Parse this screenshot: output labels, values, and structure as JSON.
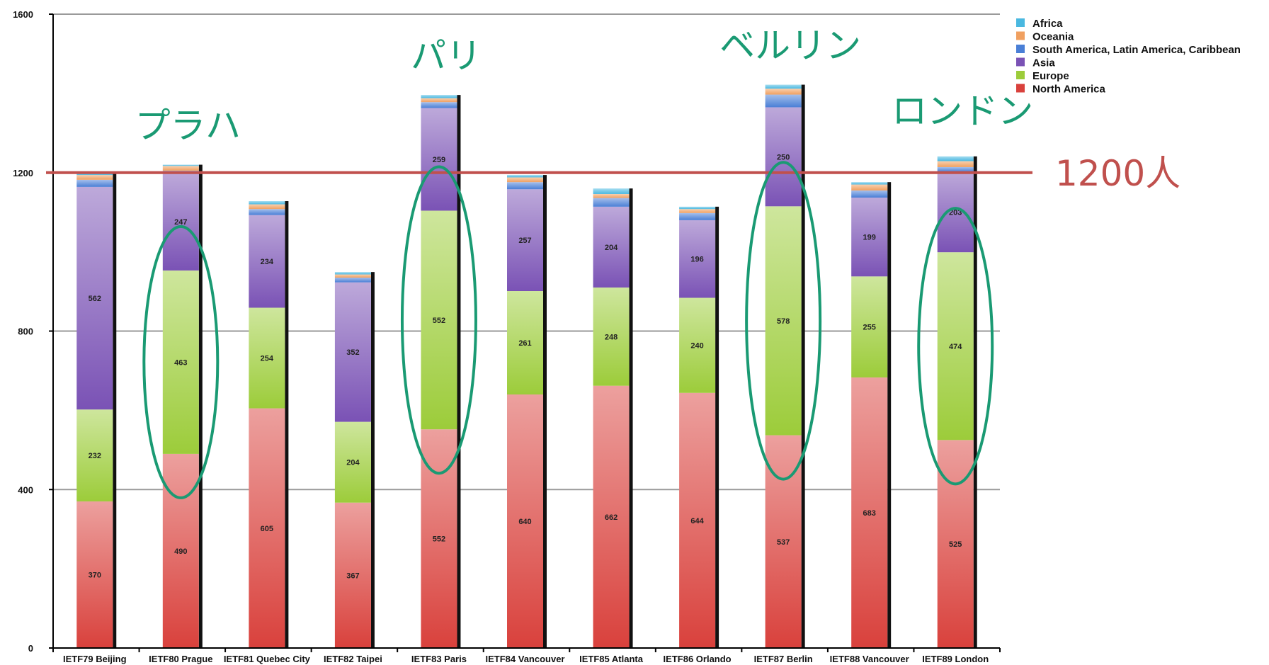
{
  "chart_data": {
    "type": "bar",
    "stacked": true,
    "ylim": [
      0,
      1600
    ],
    "yticks": [
      0,
      400,
      800,
      1200,
      1600
    ],
    "grid": true,
    "legend_position": "top-right",
    "categories": [
      "IETF79 Beijing",
      "IETF80 Prague",
      "IETF81 Quebec City",
      "IETF82 Taipei",
      "IETF83 Paris",
      "IETF84 Vancouver",
      "IETF85 Atlanta",
      "IETF86 Orlando",
      "IETF87 Berlin",
      "IETF88 Vancouver",
      "IETF89 London"
    ],
    "series": [
      {
        "name": "North America",
        "color": "#d9413c",
        "values": [
          370,
          490,
          605,
          367,
          552,
          640,
          662,
          644,
          537,
          683,
          525
        ]
      },
      {
        "name": "Europe",
        "color": "#9ccc3a",
        "values": [
          232,
          463,
          254,
          204,
          552,
          261,
          248,
          240,
          578,
          255,
          474
        ]
      },
      {
        "name": "Asia",
        "color": "#7a52b5",
        "values": [
          562,
          247,
          234,
          352,
          259,
          257,
          204,
          196,
          250,
          199,
          203
        ]
      },
      {
        "name": "South America, Latin America, Caribbean",
        "color": "#4a7fd6",
        "values": [
          18,
          5,
          15,
          12,
          15,
          18,
          22,
          18,
          32,
          18,
          12
        ]
      },
      {
        "name": "Oceania",
        "color": "#f0a060",
        "values": [
          12,
          12,
          12,
          8,
          10,
          12,
          10,
          10,
          15,
          15,
          15
        ]
      },
      {
        "name": "Africa",
        "color": "#4ab8e0",
        "values": [
          6,
          3,
          8,
          6,
          8,
          6,
          14,
          6,
          10,
          6,
          12
        ]
      }
    ],
    "label_series": [
      "North America",
      "Europe",
      "Asia"
    ],
    "reference_line": {
      "value": 1200,
      "label": "1200人",
      "color": "#c0504d"
    },
    "annotations": [
      {
        "text": "プラハ",
        "target": "IETF80 Prague"
      },
      {
        "text": "パリ",
        "target": "IETF83 Paris"
      },
      {
        "text": "ベルリン",
        "target": "IETF87 Berlin"
      },
      {
        "text": "ロンドン",
        "target": "IETF89 London"
      }
    ],
    "annotation_color": "#1a9a73"
  }
}
